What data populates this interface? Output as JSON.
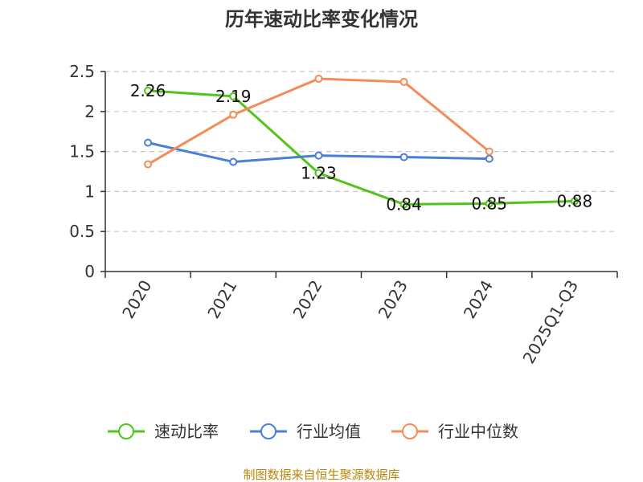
{
  "chart_data": {
    "type": "line",
    "title": "历年速动比率变化情况",
    "categories": [
      "2020",
      "2021",
      "2022",
      "2023",
      "2024",
      "2025Q1-Q3"
    ],
    "ylim": [
      0,
      2.5
    ],
    "y_ticks": [
      "0",
      "0.5",
      "1",
      "1.5",
      "2",
      "2.5"
    ],
    "grid": true,
    "legend_position": "bottom",
    "series": [
      {
        "name": "速动比率",
        "color": "#52c41a",
        "values": [
          2.26,
          2.19,
          1.23,
          0.84,
          0.85,
          0.88
        ],
        "labels": [
          "2.26",
          "2.19",
          "1.23",
          "0.84",
          "0.85",
          "0.88"
        ]
      },
      {
        "name": "行业均值",
        "color": "#4a7fd6",
        "values": [
          1.61,
          1.37,
          1.45,
          1.43,
          1.41,
          null
        ]
      },
      {
        "name": "行业中位数",
        "color": "#f58b57",
        "values": [
          1.34,
          1.96,
          2.41,
          2.37,
          1.5,
          null
        ]
      }
    ]
  },
  "source": "制图数据来自恒生聚源数据库"
}
